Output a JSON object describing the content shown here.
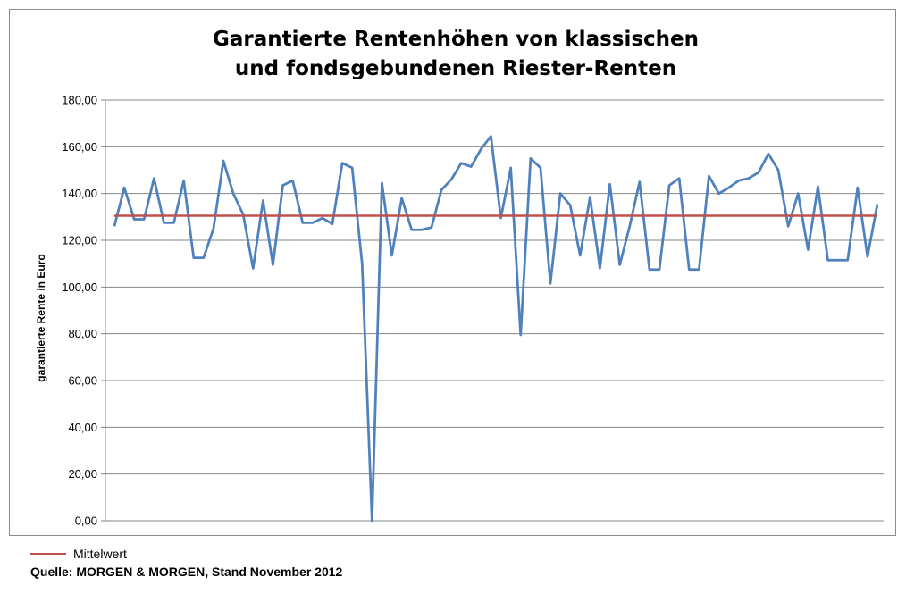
{
  "chart_data": {
    "type": "line",
    "title_lines": [
      "Garantierte Rentenhöhen von klassischen",
      "und fondsgebundenen Riester-Renten"
    ],
    "ylabel": "garantierte Rente in Euro",
    "xlabel": "",
    "ylim": [
      0,
      180
    ],
    "yticks": [
      "0,00",
      "20,00",
      "40,00",
      "60,00",
      "80,00",
      "100,00",
      "120,00",
      "140,00",
      "160,00",
      "180,00"
    ],
    "grid": "horizontal",
    "legend_position": "bottom-left",
    "series": [
      {
        "color": "#4f81bd",
        "values": [
          126,
          142.5,
          129,
          129,
          146.5,
          127.5,
          127.5,
          145.5,
          112.5,
          112.5,
          125,
          154,
          140,
          131,
          108,
          137,
          109.5,
          143.5,
          145.5,
          127.5,
          127.5,
          129.5,
          127,
          153,
          151,
          110,
          0,
          144.5,
          113.5,
          138,
          124.5,
          124.5,
          125.5,
          141.5,
          146,
          153,
          151.5,
          159,
          164.5,
          129.5,
          151,
          79.5,
          155,
          151,
          101.5,
          140,
          135,
          113.5,
          138.5,
          108,
          144,
          109.5,
          126,
          145,
          107.5,
          107.5,
          143.5,
          146.5,
          107.5,
          107.5,
          147.5,
          140,
          142.5,
          145.5,
          146.5,
          149,
          157,
          150,
          126,
          140,
          116,
          143,
          111.5,
          111.5,
          111.5,
          142.5,
          113,
          135.5
        ]
      },
      {
        "name": "Mittelwert",
        "color": "#c0504d",
        "constant": 130.5
      }
    ]
  },
  "legend": {
    "label": "Mittelwert",
    "color": "#c0504d"
  },
  "source": "Quelle: MORGEN & MORGEN, Stand November 2012"
}
